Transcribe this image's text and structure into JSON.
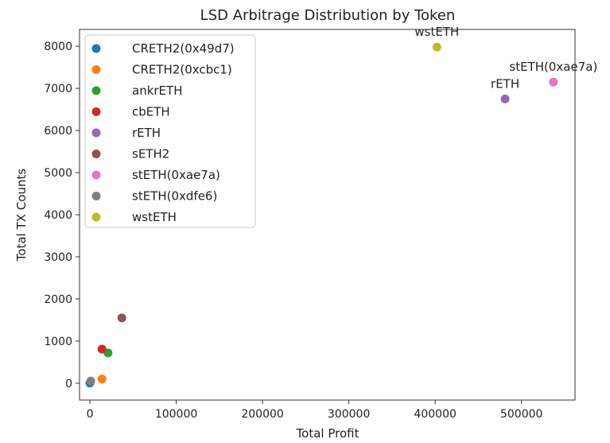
{
  "chart_data": {
    "type": "scatter",
    "title": "LSD Arbitrage Distribution by Token",
    "xlabel": "Total Profit",
    "ylabel": "Total TX Counts",
    "xlim": [
      -12000,
      562000
    ],
    "ylim": [
      -400,
      8400
    ],
    "xticks": [
      0,
      100000,
      200000,
      300000,
      400000,
      500000
    ],
    "xtick_labels": [
      "0",
      "100000",
      "200000",
      "300000",
      "400000",
      "500000"
    ],
    "yticks": [
      0,
      1000,
      2000,
      3000,
      4000,
      5000,
      6000,
      7000,
      8000
    ],
    "ytick_labels": [
      "0",
      "1000",
      "2000",
      "3000",
      "4000",
      "5000",
      "6000",
      "7000",
      "8000"
    ],
    "legend_position": "upper-left",
    "series": [
      {
        "name": "CRETH2(0x49d7)",
        "color": "#1f77b4",
        "x": 0,
        "y": 5
      },
      {
        "name": "CRETH2(0xcbc1)",
        "color": "#ff7f0e",
        "x": 14000,
        "y": 100
      },
      {
        "name": "ankrETH",
        "color": "#2ca02c",
        "x": 21000,
        "y": 720
      },
      {
        "name": "cbETH",
        "color": "#d62728",
        "x": 14000,
        "y": 810
      },
      {
        "name": "rETH",
        "color": "#9467bd",
        "x": 481000,
        "y": 6750
      },
      {
        "name": "sETH2",
        "color": "#8c564b",
        "x": 37000,
        "y": 1550
      },
      {
        "name": "stETH(0xae7a)",
        "color": "#e377c2",
        "x": 537000,
        "y": 7150
      },
      {
        "name": "stETH(0xdfe6)",
        "color": "#7f7f7f",
        "x": 1000,
        "y": 50
      },
      {
        "name": "wstETH",
        "color": "#bcbd22",
        "x": 402000,
        "y": 7980
      }
    ],
    "annotations": [
      {
        "text": "wstETH",
        "x": 402000,
        "y": 7980
      },
      {
        "text": "rETH",
        "x": 481000,
        "y": 6750
      },
      {
        "text": "stETH(0xae7a)",
        "x": 537000,
        "y": 7150
      }
    ]
  }
}
